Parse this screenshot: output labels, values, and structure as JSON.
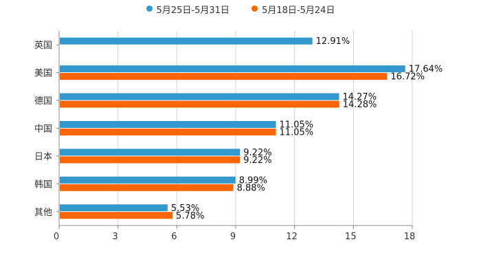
{
  "chart_data": {
    "type": "bar",
    "orientation": "horizontal",
    "categories": [
      "英国",
      "美国",
      "德国",
      "中国",
      "日本",
      "韩国",
      "其他"
    ],
    "series": [
      {
        "name": "5月25日-5月31日",
        "color": "#3399cc",
        "values": [
          12.91,
          17.64,
          14.27,
          11.05,
          9.22,
          8.99,
          5.53
        ],
        "labels": [
          "12.91%",
          "17.64%",
          "14.27%",
          "11.05%",
          "9.22%",
          "8.99%",
          "5.53%"
        ]
      },
      {
        "name": "5月18日-5月24日",
        "color": "#ff6600",
        "values": [
          null,
          16.72,
          14.28,
          11.05,
          9.22,
          8.88,
          5.78
        ],
        "labels": [
          "",
          "16.72%",
          "14.28%",
          "11.05%",
          "9.22%",
          "8.88%",
          "5.78%"
        ]
      }
    ],
    "xlim": [
      0,
      18
    ],
    "xticks": [
      "0",
      "3",
      "6",
      "9",
      "12",
      "15",
      "18"
    ],
    "grid": true,
    "legend_position": "top"
  }
}
